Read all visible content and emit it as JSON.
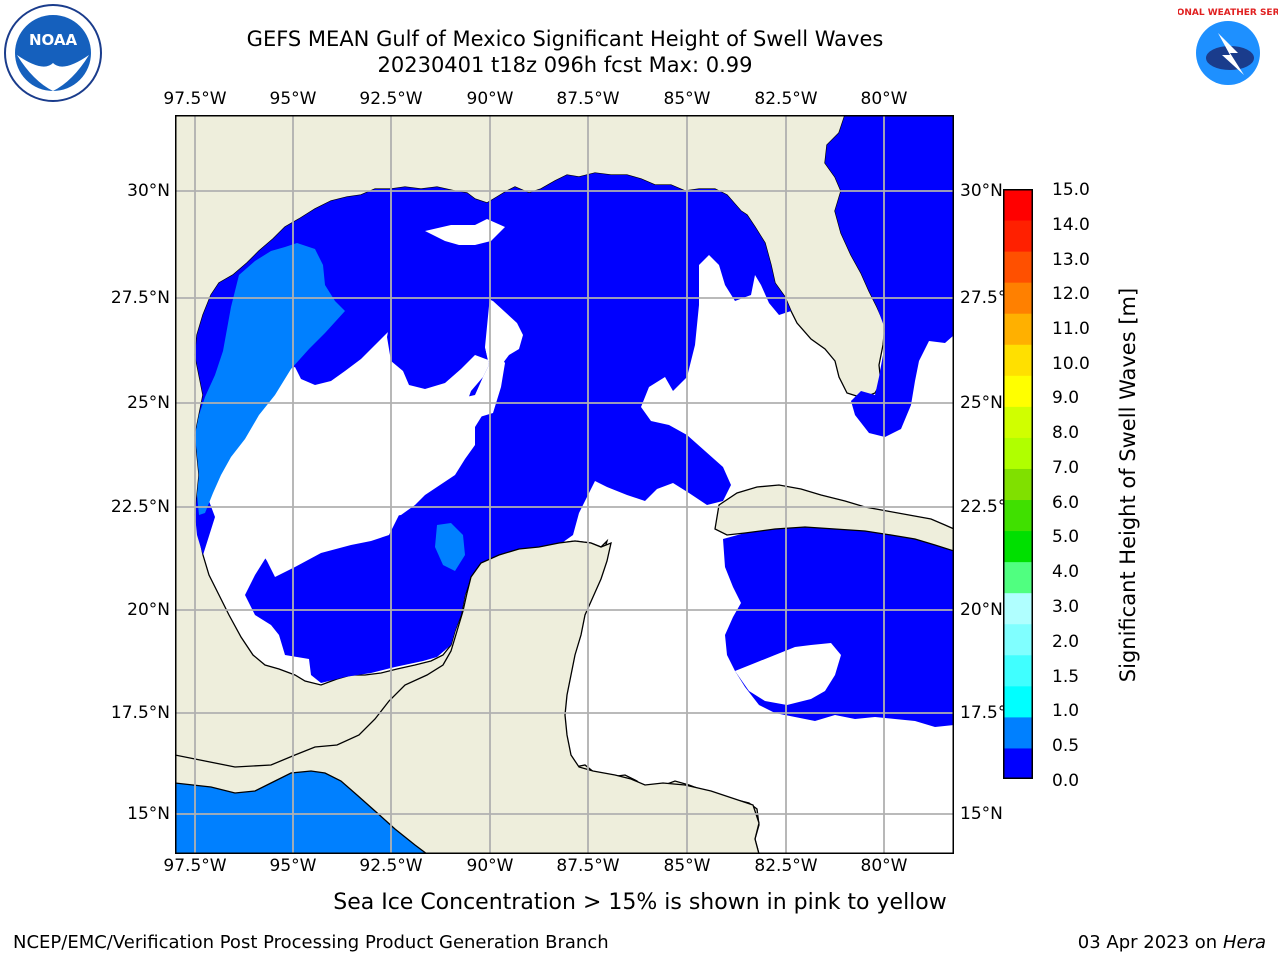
{
  "title": {
    "line1": "GEFS MEAN Gulf of Mexico Significant Height of Swell Waves",
    "line2": "20230401 t18z 096h fcst   Max: 0.99"
  },
  "longitude_labels": [
    "97.5°W",
    "95°W",
    "92.5°W",
    "90°W",
    "87.5°W",
    "85°W",
    "82.5°W",
    "80°W"
  ],
  "latitude_labels": [
    "30°N",
    "27.5°N",
    "25°N",
    "22.5°N",
    "20°N",
    "17.5°N",
    "15°N"
  ],
  "colorbar": {
    "title": "Significant Height of Swell Waves [m]",
    "ticks": [
      "15.0",
      "14.0",
      "13.0",
      "12.0",
      "11.0",
      "10.0",
      "9.0",
      "8.0",
      "7.0",
      "6.0",
      "5.0",
      "4.0",
      "3.0",
      "2.0",
      "1.5",
      "1.0",
      "0.5",
      "0.0"
    ],
    "colors": [
      "#0000ff",
      "#0080ff",
      "#00ffff",
      "#40ffff",
      "#80ffff",
      "#b0ffff",
      "#50ff80",
      "#00e000",
      "#40e000",
      "#80e000",
      "#b0ff00",
      "#d0ff00",
      "#ffff00",
      "#ffe000",
      "#ffb000",
      "#ff8000",
      "#ff5000",
      "#ff2000",
      "#ff0000"
    ]
  },
  "map": {
    "land_color": "#eeeedc",
    "ocean_color": "#ffffff",
    "swell_0_05_color": "#0000ff",
    "swell_05_10_color": "#0080ff",
    "grid_color": "#b0b0b0"
  },
  "ice_note": "Sea Ice Concentration > 15% is shown in pink to yellow",
  "footer": {
    "left": "NCEP/EMC/Verification Post Processing Product Generation Branch",
    "date": "03 Apr 2023 on ",
    "host": "Hera"
  },
  "logos": {
    "noaa_text": "NOAA",
    "nws_text": "NATIONAL WEATHER SERVICE"
  }
}
